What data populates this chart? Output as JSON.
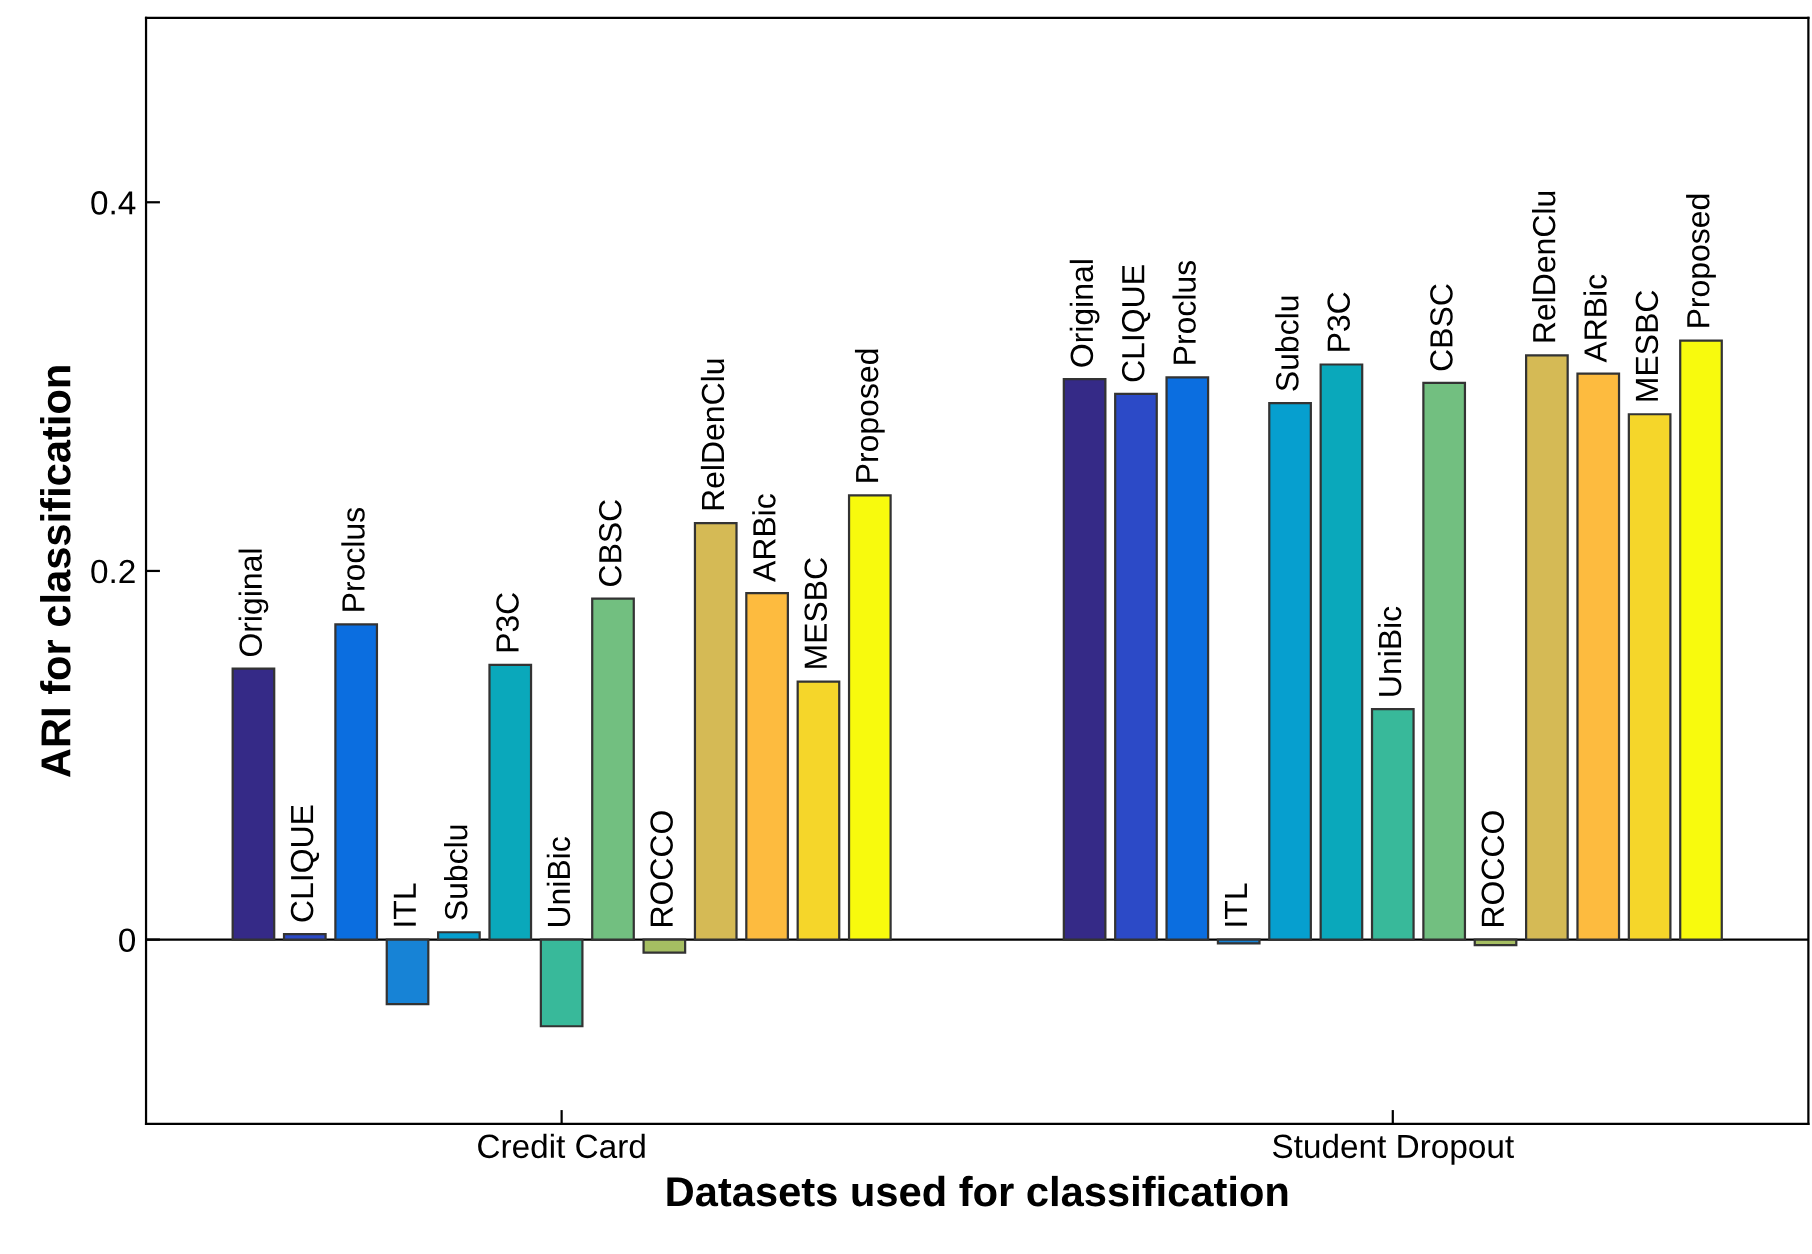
{
  "chart_data": {
    "type": "bar",
    "xlabel": "Datasets used for classification",
    "ylabel": "ARI for classification",
    "categories": [
      "Credit Card",
      "Student Dropout"
    ],
    "ylim": [
      -0.1,
      0.5
    ],
    "yticks": [
      0,
      0.2,
      0.4
    ],
    "grid": false,
    "legend": false,
    "ref_lines": [
      {
        "axis": "y",
        "value": 0
      }
    ],
    "series": [
      {
        "name": "Original",
        "color": "#352a87",
        "values": [
          0.147,
          0.304
        ]
      },
      {
        "name": "CLIQUE",
        "color": "#2c4ac7",
        "values": [
          0.003,
          0.296
        ]
      },
      {
        "name": "Proclus",
        "color": "#0b6ee0",
        "values": [
          0.171,
          0.305
        ]
      },
      {
        "name": "ITL",
        "color": "#1783d6",
        "values": [
          -0.035,
          -0.002
        ]
      },
      {
        "name": "Subclu",
        "color": "#069fcf",
        "values": [
          0.004,
          0.291
        ]
      },
      {
        "name": "P3C",
        "color": "#0aa8bb",
        "values": [
          0.149,
          0.312
        ]
      },
      {
        "name": "UniBic",
        "color": "#38b99a",
        "values": [
          -0.047,
          0.125
        ]
      },
      {
        "name": "CBSC",
        "color": "#72bf80",
        "values": [
          0.185,
          0.302
        ]
      },
      {
        "name": "ROCCO",
        "color": "#a5be62",
        "values": [
          -0.007,
          -0.003
        ]
      },
      {
        "name": "RelDenClu",
        "color": "#d5ba55",
        "values": [
          0.226,
          0.317
        ]
      },
      {
        "name": "ARBic",
        "color": "#fdbb3f",
        "values": [
          0.188,
          0.307
        ]
      },
      {
        "name": "MESBC",
        "color": "#f5d62a",
        "values": [
          0.14,
          0.285
        ]
      },
      {
        "name": "Proposed",
        "color": "#f8fa0d",
        "values": [
          0.241,
          0.325
        ]
      }
    ]
  }
}
